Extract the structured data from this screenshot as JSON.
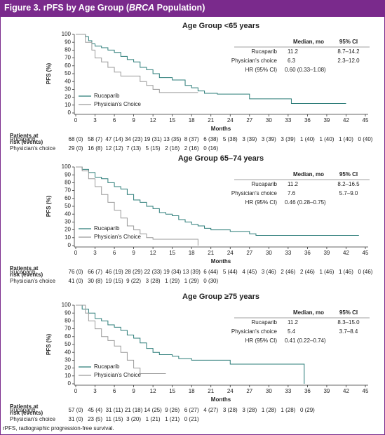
{
  "header": {
    "prefix": "Figure 3. rPFS by Age Group (",
    "italic": "BRCA",
    "suffix": " Population)"
  },
  "chart_data": [
    {
      "type": "line",
      "step": true,
      "title": "Age Group <65 years",
      "xlabel": "Months",
      "ylabel": "PFS (%)",
      "xlim": [
        0,
        45
      ],
      "xticks": [
        0,
        3,
        6,
        9,
        12,
        15,
        18,
        21,
        24,
        27,
        30,
        33,
        36,
        39,
        42,
        45
      ],
      "ylim": [
        0,
        100
      ],
      "yticks": [
        0,
        10,
        20,
        30,
        40,
        50,
        60,
        70,
        80,
        90,
        100
      ],
      "legend_position": "lower left",
      "series": [
        {
          "name": "Rucaparib",
          "color": "#2b7c78",
          "x": [
            0,
            1,
            1.5,
            2,
            2.5,
            3,
            4,
            5,
            6,
            7,
            8,
            9,
            10,
            11,
            12,
            13,
            15,
            17,
            18,
            19,
            20,
            22,
            27,
            33.5,
            42
          ],
          "values": [
            100,
            100,
            97,
            92,
            88,
            85,
            83,
            80,
            77,
            72,
            68,
            65,
            58,
            55,
            50,
            45,
            42,
            35,
            32,
            28,
            25,
            24,
            18,
            12,
            12
          ]
        },
        {
          "name": "Physician's Choice",
          "color": "#9a9a9a",
          "x": [
            0,
            1,
            1.5,
            2.5,
            3,
            4,
            5,
            6,
            7,
            9,
            10,
            11,
            12,
            13,
            19
          ],
          "values": [
            100,
            100,
            90,
            80,
            70,
            65,
            58,
            52,
            47,
            47,
            40,
            35,
            30,
            26,
            26
          ]
        }
      ],
      "stats_table": {
        "columns": [
          "Median, mo",
          "95% CI"
        ],
        "rows": [
          {
            "label": "Rucaparib",
            "median": "11.2",
            "ci": "8.7–14.2"
          },
          {
            "label": "Physician's choice",
            "median": "6.3",
            "ci": "2.3–12.0"
          }
        ],
        "hr": {
          "label": "HR (95% CI)",
          "value": "0.60 (0.33–1.08)"
        }
      },
      "risk_table": {
        "label": [
          "Patients at",
          "risk (events)"
        ],
        "rows": [
          {
            "name": "Rucaparib",
            "values": [
              "68 (0)",
              "58 (7)",
              "47 (14)",
              "34 (23)",
              "19 (31)",
              "13 (35)",
              "8 (37)",
              "6 (38)",
              "5 (38)",
              "3 (39)",
              "3 (39)",
              "3 (39)",
              "1 (40)",
              "1 (40)",
              "1 (40)",
              "0 (40)"
            ]
          },
          {
            "name": "Physician's choice",
            "values": [
              "29 (0)",
              "16 (8)",
              "12 (12)",
              "7 (13)",
              "5 (15)",
              "2 (16)",
              "2 (16)",
              "0 (16)"
            ]
          }
        ]
      }
    },
    {
      "type": "line",
      "step": true,
      "title": "Age Group 65–74 years",
      "xlabel": "Months",
      "ylabel": "PFS (%)",
      "xlim": [
        0,
        45
      ],
      "xticks": [
        0,
        3,
        6,
        9,
        12,
        15,
        18,
        21,
        24,
        27,
        30,
        33,
        36,
        39,
        42,
        45
      ],
      "ylim": [
        0,
        100
      ],
      "yticks": [
        0,
        10,
        20,
        30,
        40,
        50,
        60,
        70,
        80,
        90,
        100
      ],
      "legend_position": "lower left",
      "series": [
        {
          "name": "Rucaparib",
          "color": "#2b7c78",
          "x": [
            0,
            1,
            2,
            3,
            4,
            5,
            6,
            7,
            8,
            9,
            10,
            11,
            12,
            13,
            14,
            15,
            16,
            17,
            18,
            19,
            20,
            21,
            24,
            27,
            28,
            44
          ],
          "values": [
            100,
            97,
            93,
            87,
            85,
            80,
            75,
            72,
            65,
            58,
            55,
            50,
            47,
            42,
            40,
            38,
            33,
            30,
            27,
            25,
            22,
            20,
            18,
            15,
            13,
            13
          ]
        },
        {
          "name": "Physician's Choice",
          "color": "#9a9a9a",
          "x": [
            0,
            1,
            2,
            3,
            4,
            5,
            6,
            7,
            8,
            9,
            10,
            11,
            12,
            19
          ],
          "values": [
            100,
            95,
            85,
            75,
            65,
            55,
            45,
            35,
            25,
            20,
            15,
            10,
            8,
            0
          ]
        }
      ],
      "stats_table": {
        "columns": [
          "Median, mo",
          "95% CI"
        ],
        "rows": [
          {
            "label": "Rucaparib",
            "median": "11.2",
            "ci": "8.2–16.5"
          },
          {
            "label": "Physician's choice",
            "median": "7.6",
            "ci": "5.7–9.0"
          }
        ],
        "hr": {
          "label": "HR (95% CI)",
          "value": "0.46 (0.28–0.75)"
        }
      },
      "risk_table": {
        "label": [
          "Patients at",
          "risk (events)"
        ],
        "rows": [
          {
            "name": "Rucaparib",
            "values": [
              "76 (0)",
              "66 (7)",
              "46 (19)",
              "28 (29)",
              "22 (33)",
              "19 (34)",
              "13 (39)",
              "6 (44)",
              "5 (44)",
              "4 (45)",
              "3 (46)",
              "2 (46)",
              "2 (46)",
              "1 (46)",
              "1 (46)",
              "0 (46)"
            ]
          },
          {
            "name": "Physician's choice",
            "values": [
              "41 (0)",
              "30 (8)",
              "19 (15)",
              "9 (22)",
              "3 (28)",
              "1 (29)",
              "1 (29)",
              "0 (30)"
            ]
          }
        ]
      }
    },
    {
      "type": "line",
      "step": true,
      "title": "Age Group ≥75 years",
      "xlabel": "Months",
      "ylabel": "PFS (%)",
      "xlim": [
        0,
        45
      ],
      "xticks": [
        0,
        3,
        6,
        9,
        12,
        15,
        18,
        21,
        24,
        27,
        30,
        33,
        36,
        39,
        42,
        45
      ],
      "ylim": [
        0,
        100
      ],
      "yticks": [
        0,
        10,
        20,
        30,
        40,
        50,
        60,
        70,
        80,
        90,
        100
      ],
      "legend_position": "lower left",
      "series": [
        {
          "name": "Rucaparib",
          "color": "#2b7c78",
          "x": [
            0,
            1,
            2,
            3,
            4,
            5,
            6,
            7,
            8,
            9,
            10,
            11,
            12,
            13,
            15,
            16,
            18,
            24,
            35.5
          ],
          "values": [
            100,
            95,
            90,
            83,
            80,
            75,
            72,
            68,
            62,
            58,
            52,
            45,
            40,
            37,
            35,
            32,
            30,
            25,
            0
          ]
        },
        {
          "name": "Physician's Choice",
          "color": "#9a9a9a",
          "x": [
            0,
            1.5,
            2,
            3,
            4,
            5,
            6,
            7,
            8,
            9,
            10,
            14
          ],
          "values": [
            100,
            90,
            80,
            70,
            60,
            55,
            48,
            40,
            30,
            20,
            13,
            13
          ]
        }
      ],
      "stats_table": {
        "columns": [
          "Median, mo",
          "95% CI"
        ],
        "rows": [
          {
            "label": "Rucaparib",
            "median": "11.2",
            "ci": "8.3–15.0"
          },
          {
            "label": "Physician's choice",
            "median": "5.4",
            "ci": "3.7–8.4"
          }
        ],
        "hr": {
          "label": "HR (95% CI)",
          "value": "0.41 (0.22–0.74)"
        }
      },
      "risk_table": {
        "label": [
          "Patients at",
          "risk (events)"
        ],
        "rows": [
          {
            "name": "Rucaparib",
            "values": [
              "57 (0)",
              "45 (4)",
              "31 (11)",
              "21 (18)",
              "14 (25)",
              "9 (26)",
              "6 (27)",
              "4 (27)",
              "3 (28)",
              "3 (28)",
              "1 (28)",
              "1 (28)",
              "0 (29)"
            ]
          },
          {
            "name": "Physician's choice",
            "values": [
              "31 (0)",
              "23 (5)",
              "11 (15)",
              "3 (20)",
              "1 (21)",
              "1 (21)",
              "0 (21)"
            ]
          }
        ]
      }
    }
  ],
  "footnote": "rPFS, radiographic progression-free survival."
}
